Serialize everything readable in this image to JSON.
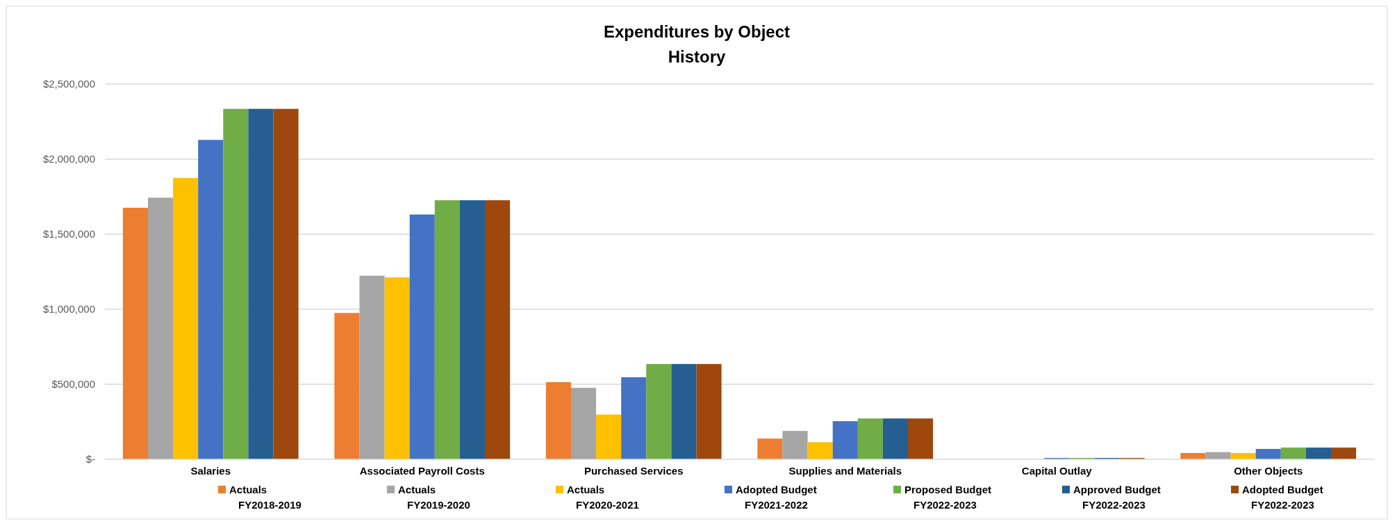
{
  "chart_data": {
    "type": "bar",
    "title": "Expenditures by Object",
    "subtitle": "History",
    "categories": [
      "Salaries",
      "Associated Payroll Costs",
      "Purchased Services",
      "Supplies and Materials",
      "Capital Outlay",
      "Other Objects"
    ],
    "series": [
      {
        "name": "Actuals\nFY2018-2019",
        "color": "#ed7d31",
        "values": [
          1676000,
          975000,
          514000,
          138000,
          0,
          42000
        ]
      },
      {
        "name": "Actuals\nFY2019-2020",
        "color": "#a5a5a5",
        "values": [
          1743000,
          1223000,
          476000,
          189000,
          0,
          48000
        ]
      },
      {
        "name": "Actuals\nFY2020-2021",
        "color": "#ffc000",
        "values": [
          1874000,
          1212000,
          298000,
          114000,
          0,
          42000
        ]
      },
      {
        "name": "Adopted Budget\nFY2021-2022",
        "color": "#4472c4",
        "values": [
          2128000,
          1631000,
          547000,
          254000,
          9000,
          69000
        ]
      },
      {
        "name": "Proposed Budget\nFY2022-2023",
        "color": "#70ad47",
        "values": [
          2335000,
          1726000,
          635000,
          272000,
          9000,
          78000
        ]
      },
      {
        "name": "Approved Budget\nFY2022-2023",
        "color": "#255e91",
        "values": [
          2335000,
          1726000,
          635000,
          272000,
          9000,
          78000
        ]
      },
      {
        "name": "Adopted Budget\nFY2022-2023",
        "color": "#9e480e",
        "values": [
          2335000,
          1726000,
          635000,
          272000,
          9000,
          78000
        ]
      }
    ],
    "ylim": [
      0,
      2500000
    ],
    "yticks": [
      {
        "value": 0,
        "label": "$-"
      },
      {
        "value": 500000,
        "label": "$500,000"
      },
      {
        "value": 1000000,
        "label": "$1,000,000"
      },
      {
        "value": 1500000,
        "label": "$1,500,000"
      },
      {
        "value": 2000000,
        "label": "$2,000,000"
      },
      {
        "value": 2500000,
        "label": "$2,500,000"
      }
    ],
    "grid": "y",
    "legend": "bottom"
  }
}
